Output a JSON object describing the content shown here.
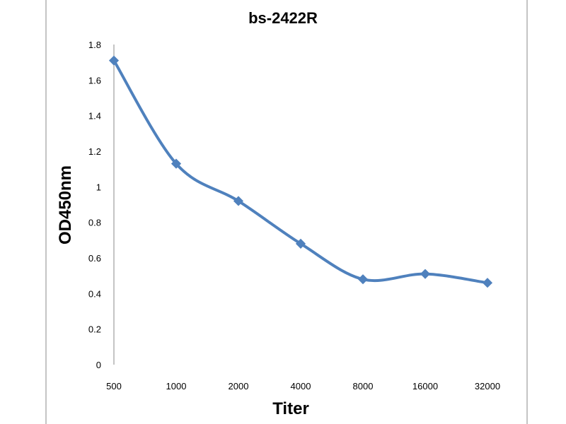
{
  "chart_data": {
    "type": "line",
    "title": "bs-2422R",
    "xlabel": "Titer",
    "ylabel": "OD450nm",
    "categories": [
      "500",
      "1000",
      "2000",
      "4000",
      "8000",
      "16000",
      "32000"
    ],
    "series": [
      {
        "name": "bs-2422R",
        "values": [
          1.71,
          1.13,
          0.92,
          0.68,
          0.48,
          0.51,
          0.46
        ],
        "color": "#4F81BD"
      }
    ],
    "ylim": [
      0,
      1.8
    ],
    "yticks": [
      "0",
      "0.2",
      "0.4",
      "0.6",
      "0.8",
      "1",
      "1.2",
      "1.4",
      "1.6",
      "1.8"
    ],
    "grid": false,
    "legend": "none"
  }
}
